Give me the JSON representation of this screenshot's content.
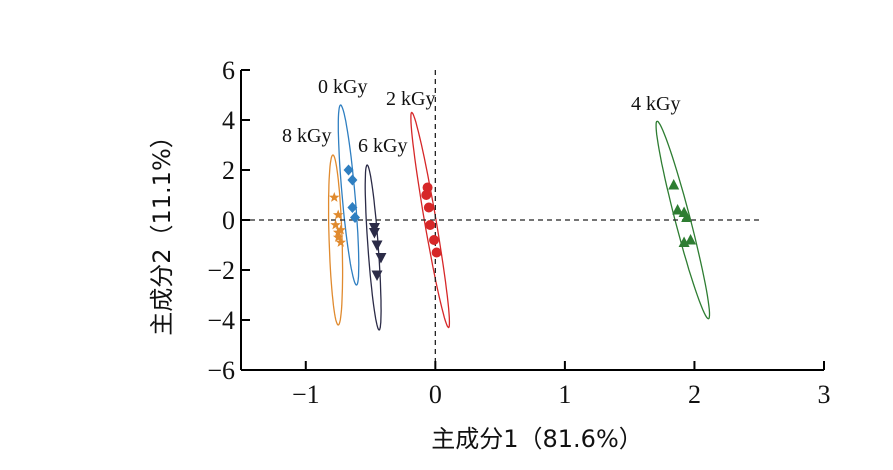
{
  "chart_data": {
    "type": "scatter",
    "xlabel": "主成分1（81.6%）",
    "ylabel": "主成分2（11.1%）",
    "xlim": [
      -1.5,
      3
    ],
    "ylim": [
      -6,
      6
    ],
    "xticks": [
      -1,
      0,
      1,
      2,
      3
    ],
    "xtick_labels": [
      "−1",
      "0",
      "1",
      "2",
      "3"
    ],
    "yticks": [
      -6,
      -4,
      -2,
      0,
      2,
      4,
      6
    ],
    "ytick_labels": [
      "−6",
      "−4",
      "−2",
      "0",
      "2",
      "4",
      "6"
    ],
    "reference_lines": {
      "x": 0,
      "y": 0,
      "style": "dashed"
    },
    "legend": "none",
    "grid": false,
    "series": [
      {
        "name": "0 kGy",
        "color": "#2f7fc1",
        "marker": "diamond",
        "x": [
          -0.67,
          -0.64,
          -0.64,
          -0.62
        ],
        "y": [
          2.0,
          1.6,
          0.5,
          0.1
        ],
        "ellipse": {
          "cx": -0.67,
          "cy": 1.0,
          "half_height": 3.6,
          "half_width": 0.05,
          "tilt_x_per_y": -0.017
        }
      },
      {
        "name": "2 kGy",
        "color": "#d62728",
        "marker": "circle",
        "x": [
          -0.06,
          -0.07,
          -0.05,
          -0.04,
          -0.01,
          0.01
        ],
        "y": [
          1.3,
          1.0,
          0.5,
          -0.2,
          -0.8,
          -1.3
        ],
        "ellipse": {
          "cx": -0.04,
          "cy": 0.0,
          "half_height": 4.3,
          "half_width": 0.045,
          "tilt_x_per_y": -0.033
        }
      },
      {
        "name": "4 kGy",
        "color": "#2e7d32",
        "marker": "triangle-up",
        "x": [
          1.84,
          1.87,
          1.92,
          1.94,
          1.92,
          1.97
        ],
        "y": [
          1.4,
          0.4,
          0.3,
          0.1,
          -0.9,
          -0.8
        ],
        "ellipse": {
          "cx": 1.91,
          "cy": 0.0,
          "half_height": 3.95,
          "half_width": 0.06,
          "tilt_x_per_y": -0.05
        }
      },
      {
        "name": "6 kGy",
        "color": "#2b2b47",
        "marker": "triangle-down",
        "x": [
          -0.47,
          -0.47,
          -0.45,
          -0.42,
          -0.45
        ],
        "y": [
          -0.3,
          -0.5,
          -1.0,
          -1.5,
          -2.2
        ],
        "ellipse": {
          "cx": -0.48,
          "cy": -1.1,
          "half_height": 3.3,
          "half_width": 0.04,
          "tilt_x_per_y": -0.014
        }
      },
      {
        "name": "8 kGy",
        "color": "#e08a2e",
        "marker": "star",
        "x": [
          -0.78,
          -0.75,
          -0.77,
          -0.73,
          -0.75,
          -0.75,
          -0.73
        ],
        "y": [
          0.9,
          0.2,
          -0.2,
          -0.4,
          -0.5,
          -0.7,
          -0.9
        ],
        "ellipse": {
          "cx": -0.77,
          "cy": -0.8,
          "half_height": 3.4,
          "half_width": 0.05,
          "tilt_x_per_y": -0.006
        }
      }
    ]
  }
}
